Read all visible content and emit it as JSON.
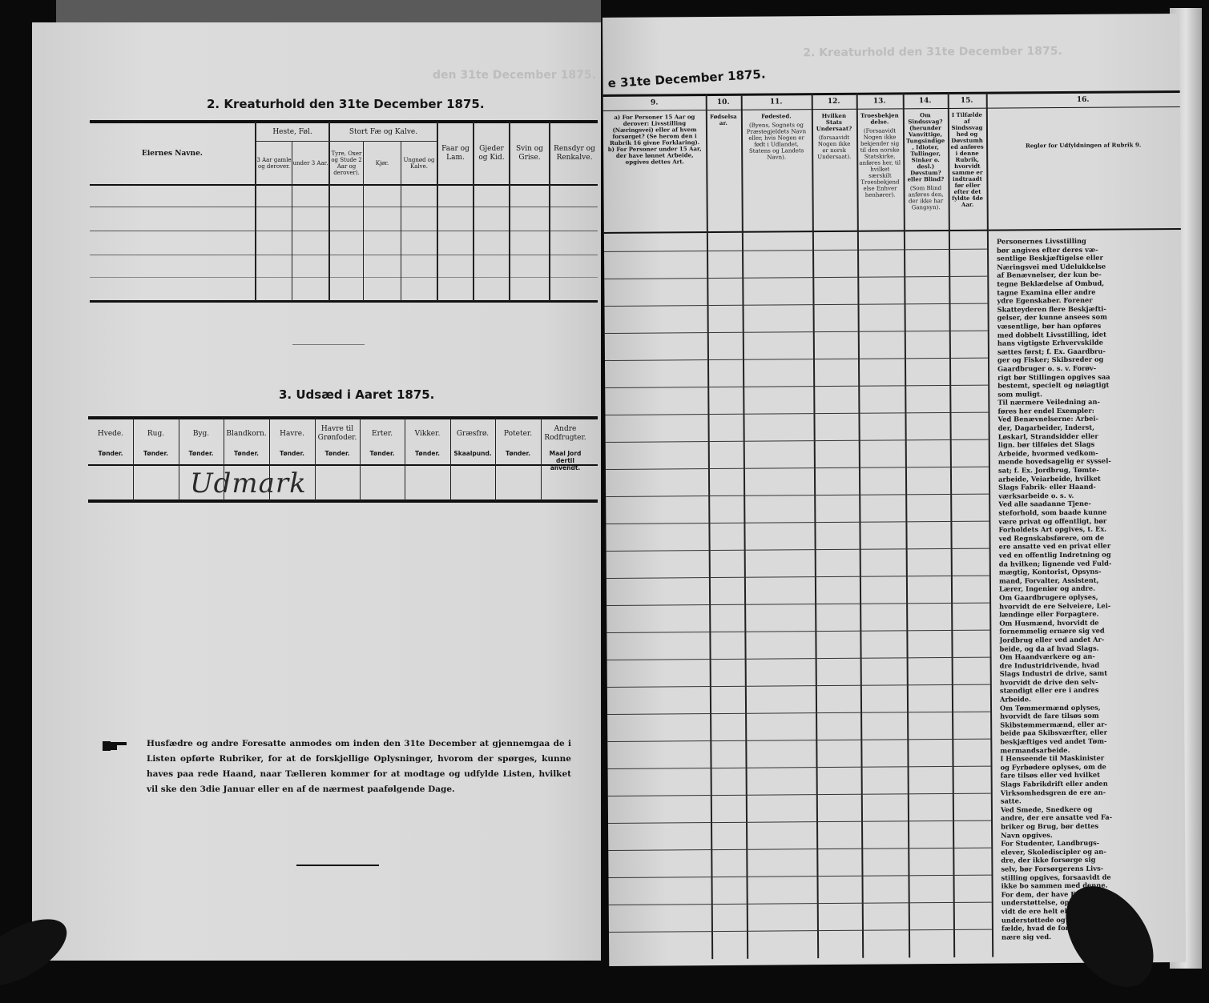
{
  "left_page": {
    "section2": {
      "title": "2.  Kreaturhold den 31te December 1875.",
      "owner_col": "Eiernes Navne.",
      "horse_group": "Heste, Føl.",
      "horse_sub": [
        "3 Aar gamle og derover.",
        "under 3 Aar."
      ],
      "cattle_group": "Stort Fæ og Kalve.",
      "cattle_sub": [
        "Tyre, Oxer og Stude 2 Aar og derover).",
        "Kjør.",
        "Ungnød og Kalve."
      ],
      "other_cols": [
        "Faar og Lam.",
        "Gjeder og Kid.",
        "Svin og Grise.",
        "Rensdyr og Renkalve."
      ]
    },
    "section3": {
      "title": "3.  Udsæd i Aaret 1875.",
      "columns": [
        {
          "name": "Hvede.",
          "unit": "Tønder."
        },
        {
          "name": "Rug.",
          "unit": "Tønder."
        },
        {
          "name": "Byg.",
          "unit": "Tønder."
        },
        {
          "name": "Blandkorn.",
          "unit": "Tønder."
        },
        {
          "name": "Havre.",
          "unit": "Tønder."
        },
        {
          "name": "Havre til Grønfoder.",
          "unit": "Tønder."
        },
        {
          "name": "Erter.",
          "unit": "Tønder."
        },
        {
          "name": "Vikker.",
          "unit": "Tønder."
        },
        {
          "name": "Græsfrø.",
          "unit": "Skaalpund."
        },
        {
          "name": "Poteter.",
          "unit": "Tønder."
        },
        {
          "name": "Andre Rodfrugter.",
          "unit": "Maal Jord dertil anvendt."
        }
      ],
      "handwritten_entry": "Udmark"
    },
    "notice": "Husfædre og andre Foresatte anmodes om inden den 31te December at gjennemgaa de i Listen opførte Rubriker, for at de forskjellige Oplysninger, hvorom der spørges, kunne haves paa rede Haand, naar Tælleren kommer for at modtage og udfylde Listen, hvilket vil ske den 3die Januar eller en af de nærmest paafølgende Dage.",
    "ghost_text": "den 31te December 1875."
  },
  "right_page": {
    "heading": "e 31te December 1875.",
    "ghost_text": "2.  Kreaturhold den 31te December 1875.",
    "columns": [
      {
        "num": "9.",
        "text": "a) For Personer 15 Aar og derover: Livsstilling (Næringsvei) eller af hvem forsørget? (Se herom den i Rubrik 16 givne Forklaring).  b) For Personer under 15 Aar, der have lønnet Arbeide, opgives dettes Art."
      },
      {
        "num": "10.",
        "text": "Fødselsaar."
      },
      {
        "num": "11.",
        "text": "Fødested.",
        "note": "(Byens, Sognets og Præstegjeldets Navn eller, hvis Nogen er født i Udlandet, Statens og Landets Navn)."
      },
      {
        "num": "12.",
        "text": "Hvilken Stats Undersaat?",
        "note": "(forsaavidt Nogen ikke er norsk Undersaat)."
      },
      {
        "num": "13.",
        "text": "Troesbekjendelse.",
        "note": "(Forsaavidt Nogen ikke bekjender sig til den norske Statskirke, anføres her, til hvilket særskilt Troesbekjendelse Enhver henhører)."
      },
      {
        "num": "14.",
        "text": "Om Sindssvag? (herunder Vanvittige, Tungsindige, Idioter, Tullinger, Sinker o. desl.) Døvstum? eller Blind?",
        "note": "(Som Blind anføres den, der ikke har Gangsyn)."
      },
      {
        "num": "15.",
        "text": "I Tilfælde af Sindssvaghed og Døvstumhed anføres i denne Rubrik, hvorvidt samme er indtraadt før eller efter det fyldte 4de Aar."
      },
      {
        "num": "16.",
        "text": "Regler for Udfyldningen af Rubrik 9."
      }
    ],
    "rules_lines": [
      "Personernes Livsstilling",
      "bør angives efter deres væ-",
      "sentlige Beskjæftigelse eller",
      "Næringsvei med Udelukkelse",
      "af Benævnelser, der kun be-",
      "tegne Beklædelse af Ombud,",
      "tagne Examina eller andre",
      "ydre Egenskaber. Forener",
      "Skatteyderen flere Beskjæfti-",
      "gelser, der kunne ansees som",
      "væsentlige, bør han opføres",
      "med dobbelt Livsstilling, idet",
      "hans vigtigste Erhvervskilde",
      "sættes først; f. Ex. Gaardbru-",
      "ger og Fisker; Skibsreder og",
      "Gaardbruger o. s. v. Forøv-",
      "rigt bør Stillingen opgives saa",
      "bestemt, specielt og nøiagtigt",
      "som muligt.",
      "Til nærmere Veiledning an-",
      "føres her endel Exempler:",
      "Ved Benævnelserne: Arbei-",
      "der, Dagarbeider, Inderst,",
      "Løskarl, Strandsidder eller",
      "lign. bør tilføies det Slags",
      "Arbeide, hvormed vedkom-",
      "mende hovedsagelig er syssel-",
      "sat; f. Ex. Jordbrug, Tømte-",
      "arbeide, Veiarbeide, hvilket",
      "Slags Fabrik- eller Haand-",
      "værksarbeide o. s. v.",
      "Ved alle saadanne Tjene-",
      "steforhold, som baade kunne",
      "være privat og offentligt, bør",
      "Forholdets Art opgives, t. Ex.",
      "ved Regnskabsførere, om de",
      "ere ansatte ved en privat eller",
      "ved en offentlig Indretning og",
      "da hvilken; lignende ved Fuld-",
      "mægtig, Kontorist, Opsyns-",
      "mand, Forvalter, Assistent,",
      "Lærer, Ingeniør og andre.",
      "Om Gaardbrugere oplyses,",
      "hvorvidt de ere Selveiere, Lei-",
      "lændinge eller Forpagtere.",
      "Om Husmænd, hvorvidt de",
      "fornemmelig ernære sig ved",
      "Jordbrug eller ved andet Ar-",
      "beide, og da af hvad Slags.",
      "Om Haandværkere og an-",
      "dre Industridrivende, hvad",
      "Slags Industri de drive, samt",
      "hvorvidt de drive den selv-",
      "stændigt eller ere i andres",
      "Arbeide.",
      "Om Tømmermænd oplyses,",
      "hvorvidt de fare tilsøs som",
      "Skibstømmermænd, eller ar-",
      "beide paa Skibsværfter, eller",
      "beskjæftiges ved andet Tøm-",
      "mermandsarbeide.",
      "I Henseende til Maskinister",
      "og Fyrbødere oplyses, om de",
      "fare tilsøs eller ved hvilket",
      "Slags Fabrikdrift eller anden",
      "Virksomhedsgren de ere an-",
      "satte.",
      "Ved Smede, Snedkere og",
      "andre, der ere ansatte ved Fa-",
      "briker og Brug, bør dettes",
      "Navn opgives.",
      "For Studenter, Landbrugs-",
      "elever, Skolediscipler og an-",
      "dre, der ikke forsørge sig",
      "selv, bør Forsørgerens Livs-",
      "stilling opgives, forsaavidt de",
      "ikke bo sammen med denne.",
      "For dem, der have Fattig-",
      "understøttelse, oplyses, hvor-",
      "vidt de ere helt eller delvis",
      "understøttede og i sidste Til-",
      "fælde, hvad de forøvrigt er-",
      "nære sig ved."
    ]
  },
  "colors": {
    "paper": "#d9d9d9",
    "ink": "#151515",
    "background": "#0a0a0a"
  }
}
